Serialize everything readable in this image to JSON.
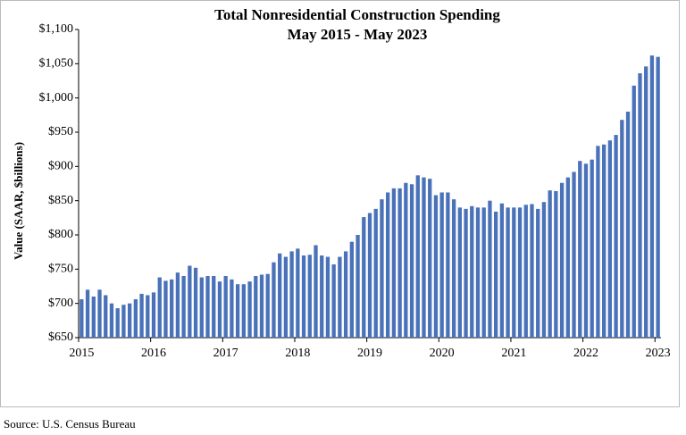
{
  "chart_data": {
    "type": "bar",
    "title": "Total Nonresidential Construction Spending",
    "subtitle": "May 2015 - May 2023",
    "y_label": "Value (SAAR, $billions)",
    "source": "Source:  U.S. Census Bureau",
    "color": "#4a72b8",
    "categories": [
      "2015",
      null,
      null,
      null,
      null,
      null,
      null,
      null,
      null,
      null,
      null,
      null,
      "2016",
      null,
      null,
      null,
      null,
      null,
      null,
      null,
      null,
      null,
      null,
      null,
      "2017",
      null,
      null,
      null,
      null,
      null,
      null,
      null,
      null,
      null,
      null,
      null,
      "2018",
      null,
      null,
      null,
      null,
      null,
      null,
      null,
      null,
      null,
      null,
      null,
      "2019",
      null,
      null,
      null,
      null,
      null,
      null,
      null,
      null,
      null,
      null,
      null,
      "2020",
      null,
      null,
      null,
      null,
      null,
      null,
      null,
      null,
      null,
      null,
      null,
      "2021",
      null,
      null,
      null,
      null,
      null,
      null,
      null,
      null,
      null,
      null,
      null,
      "2022",
      null,
      null,
      null,
      null,
      null,
      null,
      null,
      null,
      null,
      null,
      null,
      "2023"
    ],
    "values": [
      706,
      720,
      710,
      720,
      712,
      700,
      693,
      698,
      700,
      706,
      714,
      712,
      716,
      738,
      733,
      735,
      745,
      740,
      755,
      752,
      738,
      740,
      740,
      732,
      740,
      735,
      728,
      728,
      732,
      740,
      742,
      743,
      760,
      773,
      768,
      776,
      780,
      770,
      771,
      785,
      770,
      768,
      757,
      768,
      776,
      790,
      800,
      826,
      832,
      838,
      852,
      862,
      868,
      868,
      876,
      874,
      887,
      884,
      882,
      858,
      862,
      862,
      852,
      840,
      838,
      842,
      840,
      840,
      850,
      834,
      846,
      840,
      840,
      840,
      844,
      845,
      838,
      848,
      865,
      864,
      876,
      884,
      892,
      908,
      904,
      910,
      930,
      932,
      938,
      946,
      968,
      980,
      1018,
      1036,
      1046,
      1062,
      1060
    ],
    "ylim": [
      650,
      1100
    ],
    "yticks": [
      {
        "value": 650,
        "label": "$650"
      },
      {
        "value": 700,
        "label": "$700"
      },
      {
        "value": 750,
        "label": "$750"
      },
      {
        "value": 800,
        "label": "$800"
      },
      {
        "value": 850,
        "label": "$850"
      },
      {
        "value": 900,
        "label": "$900"
      },
      {
        "value": 950,
        "label": "$950"
      },
      {
        "value": 1000,
        "label": "$1,000"
      },
      {
        "value": 1050,
        "label": "$1,050"
      },
      {
        "value": 1100,
        "label": "$1,100"
      }
    ],
    "grid": false
  }
}
